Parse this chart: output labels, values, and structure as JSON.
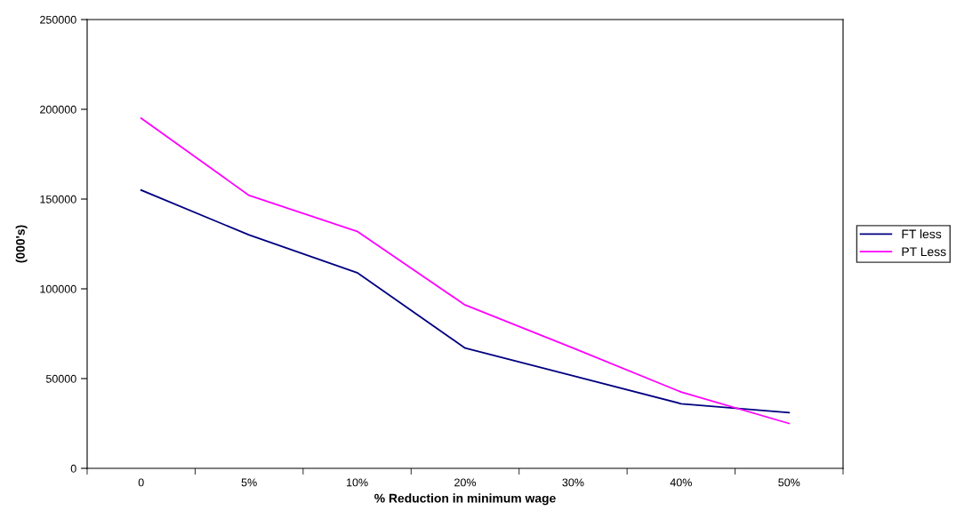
{
  "chart_data": {
    "type": "line",
    "xlabel": "% Reduction in minimum wage",
    "ylabel": "(000's)",
    "categories": [
      "0",
      "5%",
      "10%",
      "20%",
      "30%",
      "40%",
      "50%"
    ],
    "series": [
      {
        "name": "FT less",
        "color": "#000080",
        "values": [
          155000,
          130000,
          109000,
          67000,
          51500,
          36000,
          31000
        ]
      },
      {
        "name": "PT Less",
        "color": "#ff00ff",
        "values": [
          195000,
          152000,
          132000,
          91000,
          67000,
          42500,
          25000
        ]
      }
    ],
    "ylim": [
      0,
      250000
    ],
    "yticks": [
      0,
      50000,
      100000,
      150000,
      200000,
      250000
    ],
    "grid": false,
    "legend": "right",
    "marker": "none",
    "line_style": "solid"
  }
}
